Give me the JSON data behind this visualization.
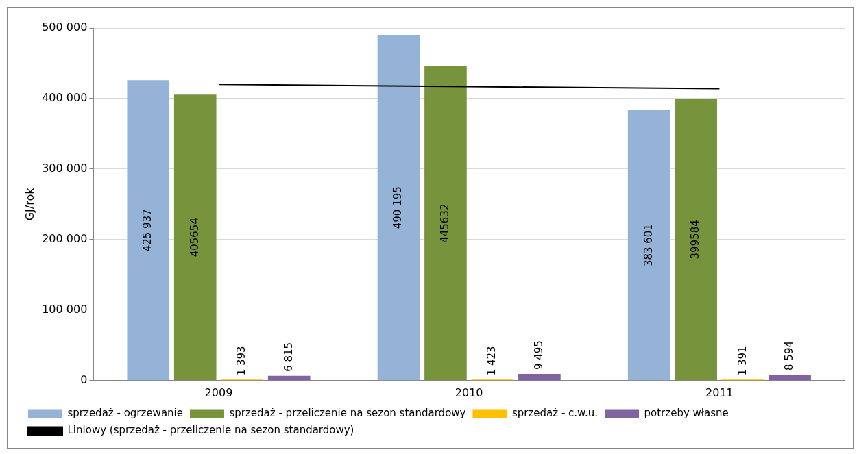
{
  "chart_data": {
    "type": "bar",
    "ylabel": "GJ/rok",
    "categories": [
      "2009",
      "2010",
      "2011"
    ],
    "ylim": [
      0,
      500000
    ],
    "yticks": [
      {
        "value": 0,
        "label": "0"
      },
      {
        "value": 100000,
        "label": "100 000"
      },
      {
        "value": 200000,
        "label": "200 000"
      },
      {
        "value": 300000,
        "label": "300 000"
      },
      {
        "value": 400000,
        "label": "400 000"
      },
      {
        "value": 500000,
        "label": "500 000"
      }
    ],
    "grid": "y",
    "legend": "bottom",
    "series": [
      {
        "name": "sprzedaż - ogrzewanie",
        "color": "#95b3d7",
        "values": [
          425937,
          490195,
          383601
        ],
        "value_labels": [
          "425 937",
          "490 195",
          "383 601"
        ]
      },
      {
        "name": "sprzedaż - przeliczenie na sezon standardowy",
        "color": "#77933c",
        "values": [
          405654,
          445632,
          399584
        ],
        "value_labels": [
          "405654",
          "445632",
          "399584"
        ]
      },
      {
        "name": "sprzedaż - c.w.u.",
        "color": "#ffc000",
        "values": [
          1393,
          1423,
          1391
        ],
        "value_labels": [
          "1 393",
          "1 423",
          "1 391"
        ]
      },
      {
        "name": "potrzeby własne",
        "color": "#8064a2",
        "values": [
          6815,
          9495,
          8594
        ],
        "value_labels": [
          "6 815",
          "9 495",
          "8 594"
        ]
      },
      {
        "name": "Liniowy (sprzedaż - przeliczenie na sezon standardowy)",
        "type": "line",
        "color": "#000000",
        "values": [
          420000,
          417000,
          414000
        ],
        "marker": "none",
        "line_style": "solid"
      }
    ]
  }
}
